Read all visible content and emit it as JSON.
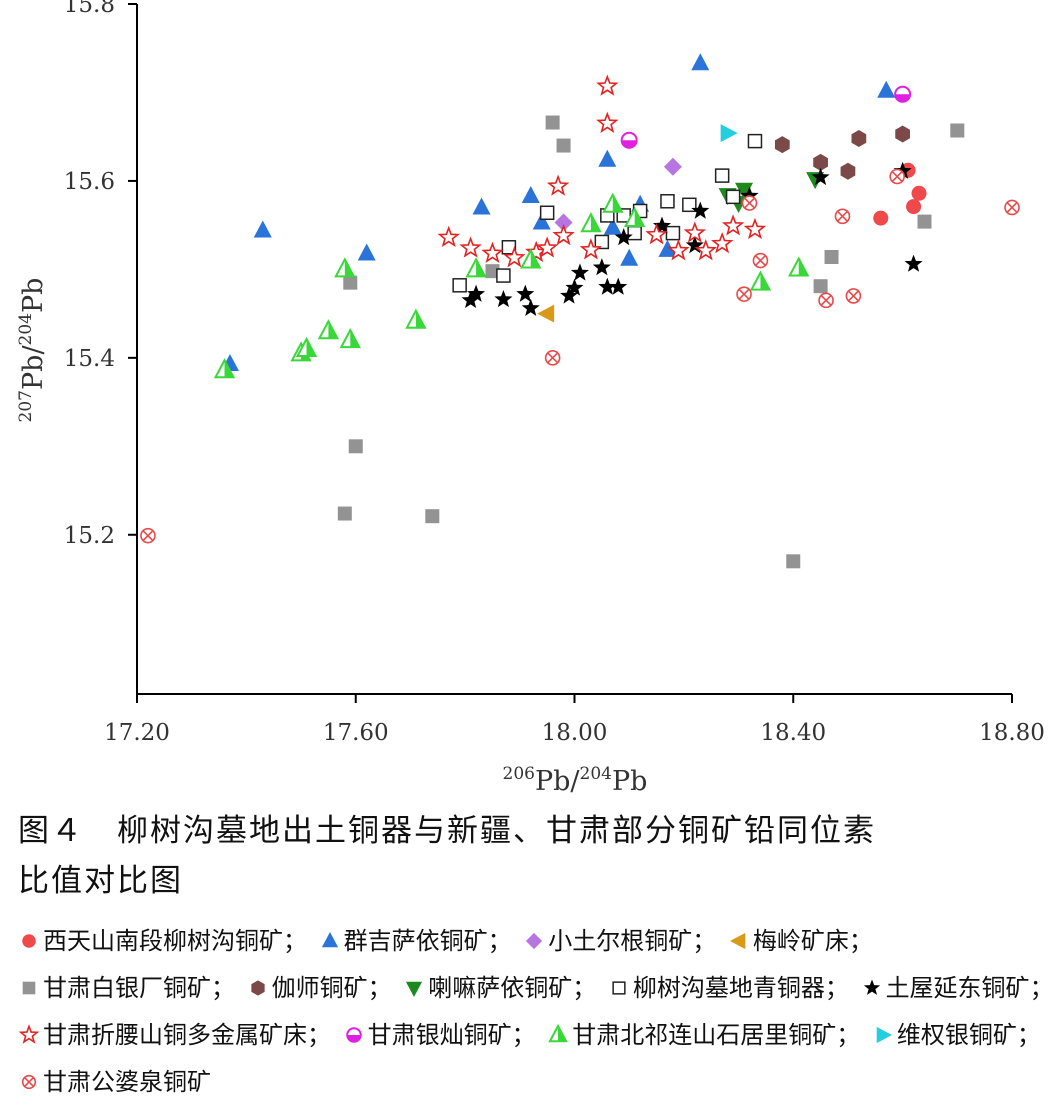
{
  "chart_data": {
    "type": "scatter",
    "xlabel": {
      "sup": "206",
      "main": "Pb/",
      "sup2": "204",
      "main2": "Pb"
    },
    "ylabel": {
      "sup": "207",
      "main": "Pb/",
      "sup2": "204",
      "main2": "Pb"
    },
    "xlim": [
      17.2,
      18.8
    ],
    "ylim": [
      15.02,
      15.8
    ],
    "x_ticks": [
      "17.20",
      "17.60",
      "18.00",
      "18.40",
      "18.80"
    ],
    "x_tick_values": [
      17.2,
      17.6,
      18.0,
      18.4,
      18.8
    ],
    "y_ticks": [
      "15.2",
      "15.4",
      "15.6",
      "15.8"
    ],
    "y_tick_values": [
      15.2,
      15.4,
      15.6,
      15.8
    ],
    "grid": false,
    "series": [
      {
        "name": "西天山南段柳树沟铜矿",
        "marker": "circle",
        "color": "#f0494b",
        "points": [
          [
            18.56,
            15.558
          ],
          [
            18.61,
            15.612
          ],
          [
            18.62,
            15.571
          ],
          [
            18.63,
            15.586
          ]
        ]
      },
      {
        "name": "群吉萨依铜矿",
        "marker": "triangle-up",
        "color": "#2a73d9",
        "points": [
          [
            17.37,
            15.393
          ],
          [
            17.43,
            15.544
          ],
          [
            17.62,
            15.518
          ],
          [
            17.83,
            15.57
          ],
          [
            17.92,
            15.583
          ],
          [
            17.94,
            15.553
          ],
          [
            18.06,
            15.624
          ],
          [
            18.07,
            15.547
          ],
          [
            18.1,
            15.512
          ],
          [
            18.12,
            15.573
          ],
          [
            18.17,
            15.522
          ],
          [
            18.23,
            15.733
          ],
          [
            18.57,
            15.702
          ]
        ]
      },
      {
        "name": "小土尔根铜矿",
        "marker": "diamond",
        "color": "#b675e0",
        "points": [
          [
            17.98,
            15.553
          ],
          [
            18.18,
            15.616
          ]
        ]
      },
      {
        "name": "梅岭矿床",
        "marker": "triangle-left",
        "color": "#d99a1a",
        "points": [
          [
            17.95,
            15.45
          ]
        ]
      },
      {
        "name": "甘肃白银厂铜矿",
        "marker": "square",
        "color": "#939393",
        "points": [
          [
            17.58,
            15.224
          ],
          [
            17.59,
            15.485
          ],
          [
            17.6,
            15.3
          ],
          [
            17.74,
            15.221
          ],
          [
            17.85,
            15.498
          ],
          [
            17.96,
            15.666
          ],
          [
            17.98,
            15.64
          ],
          [
            18.4,
            15.17
          ],
          [
            18.45,
            15.481
          ],
          [
            18.47,
            15.514
          ],
          [
            18.64,
            15.554
          ],
          [
            18.7,
            15.657
          ]
        ]
      },
      {
        "name": "伽师铜矿",
        "marker": "hexagon",
        "color": "#7b4a48",
        "points": [
          [
            18.38,
            15.641
          ],
          [
            18.45,
            15.621
          ],
          [
            18.5,
            15.611
          ],
          [
            18.52,
            15.648
          ],
          [
            18.6,
            15.653
          ]
        ]
      },
      {
        "name": "喇嘛萨依铜矿",
        "marker": "triangle-down",
        "color": "#1e8a1e",
        "points": [
          [
            18.28,
            15.584
          ],
          [
            18.3,
            15.575
          ],
          [
            18.31,
            15.59
          ],
          [
            18.44,
            15.602
          ]
        ]
      },
      {
        "name": "柳树沟墓地青铜器",
        "marker": "square-open",
        "color": "#222222",
        "points": [
          [
            17.79,
            15.482
          ],
          [
            17.87,
            15.493
          ],
          [
            17.88,
            15.525
          ],
          [
            17.95,
            15.564
          ],
          [
            18.05,
            15.531
          ],
          [
            18.06,
            15.561
          ],
          [
            18.09,
            15.561
          ],
          [
            18.11,
            15.541
          ],
          [
            18.12,
            15.566
          ],
          [
            18.17,
            15.577
          ],
          [
            18.18,
            15.541
          ],
          [
            18.21,
            15.573
          ],
          [
            18.27,
            15.606
          ],
          [
            18.29,
            15.582
          ],
          [
            18.33,
            15.645
          ]
        ]
      },
      {
        "name": "土屋延东铜矿",
        "marker": "star",
        "color": "#000000",
        "points": [
          [
            17.81,
            15.465
          ],
          [
            17.82,
            15.472
          ],
          [
            17.87,
            15.466
          ],
          [
            17.91,
            15.472
          ],
          [
            17.92,
            15.456
          ],
          [
            17.99,
            15.47
          ],
          [
            18.0,
            15.479
          ],
          [
            18.01,
            15.496
          ],
          [
            18.05,
            15.502
          ],
          [
            18.06,
            15.48
          ],
          [
            18.08,
            15.48
          ],
          [
            18.09,
            15.536
          ],
          [
            18.16,
            15.549
          ],
          [
            18.22,
            15.527
          ],
          [
            18.23,
            15.566
          ],
          [
            18.32,
            15.583
          ],
          [
            18.45,
            15.604
          ],
          [
            18.6,
            15.611
          ],
          [
            18.62,
            15.506
          ]
        ]
      },
      {
        "name": "甘肃折腰山铜多金属矿床",
        "marker": "star-open",
        "color": "#e52222",
        "points": [
          [
            17.77,
            15.536
          ],
          [
            17.81,
            15.524
          ],
          [
            17.85,
            15.518
          ],
          [
            17.89,
            15.513
          ],
          [
            17.93,
            15.519
          ],
          [
            17.95,
            15.524
          ],
          [
            17.97,
            15.594
          ],
          [
            17.98,
            15.538
          ],
          [
            18.03,
            15.522
          ],
          [
            18.06,
            15.665
          ],
          [
            18.06,
            15.707
          ],
          [
            18.15,
            15.539
          ],
          [
            18.19,
            15.521
          ],
          [
            18.22,
            15.541
          ],
          [
            18.24,
            15.521
          ],
          [
            18.27,
            15.529
          ],
          [
            18.29,
            15.549
          ],
          [
            18.33,
            15.545
          ]
        ]
      },
      {
        "name": "甘肃银灿铜矿",
        "marker": "circle-half",
        "color": "#e020e0",
        "points": [
          [
            18.1,
            15.646
          ],
          [
            18.6,
            15.698
          ]
        ]
      },
      {
        "name": "甘肃北祁连山石居里铜矿",
        "marker": "triangle-open",
        "color": "#39d839",
        "points": [
          [
            17.36,
            15.386
          ],
          [
            17.5,
            15.405
          ],
          [
            17.51,
            15.41
          ],
          [
            17.55,
            15.43
          ],
          [
            17.58,
            15.5
          ],
          [
            17.59,
            15.42
          ],
          [
            17.71,
            15.442
          ],
          [
            17.82,
            15.5
          ],
          [
            17.92,
            15.51
          ],
          [
            18.03,
            15.551
          ],
          [
            18.07,
            15.573
          ],
          [
            18.11,
            15.557
          ],
          [
            18.34,
            15.485
          ],
          [
            18.41,
            15.501
          ]
        ]
      },
      {
        "name": "维权银铜矿",
        "marker": "triangle-right",
        "color": "#22cfe0",
        "points": [
          [
            18.28,
            15.654
          ]
        ]
      },
      {
        "name": "甘肃公婆泉铜矿",
        "marker": "circle-x",
        "color": "#e84a4a",
        "points": [
          [
            17.22,
            15.199
          ],
          [
            17.96,
            15.4
          ],
          [
            18.31,
            15.472
          ],
          [
            18.32,
            15.575
          ],
          [
            18.34,
            15.51
          ],
          [
            18.46,
            15.465
          ],
          [
            18.49,
            15.56
          ],
          [
            18.51,
            15.47
          ],
          [
            18.59,
            15.605
          ],
          [
            18.8,
            15.57
          ]
        ]
      }
    ]
  },
  "caption": {
    "line1": "图４　柳树沟墓地出土铜器与新疆、甘肃部分铜矿铅同位素",
    "line2": "比值对比图"
  },
  "legend_separator": "；"
}
